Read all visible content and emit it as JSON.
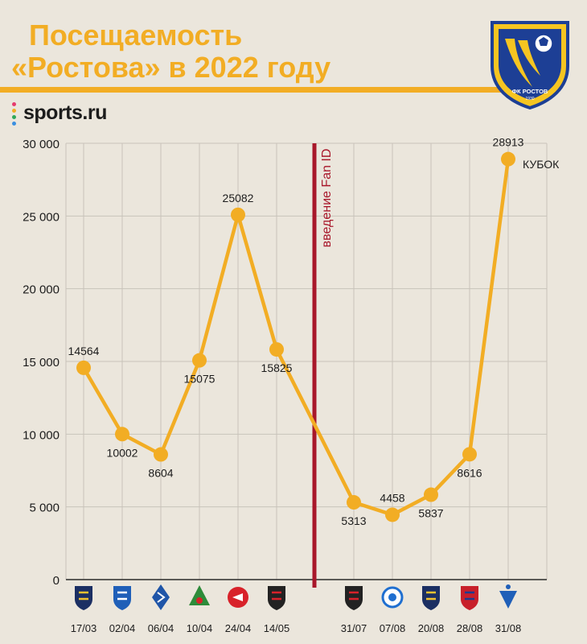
{
  "header": {
    "title_line1": "Посещаемость",
    "title_line2": "«Ростова» в 2022 году",
    "brand": "sports.ru",
    "emblem_text": "ФК РОСТОВ",
    "emblem_year": "1930"
  },
  "colors": {
    "accent": "#f2ad24",
    "line": "#f2ad24",
    "marker": "#f2ad24",
    "divider": "#a8172a",
    "grid": "#c8c3ba",
    "background": "#ebe6dc",
    "text": "#1c1c1c",
    "emblem_blue": "#1d3f95",
    "emblem_yellow": "#f6c521"
  },
  "chart_data": {
    "type": "line",
    "title": "Посещаемость «Ростова» в 2022 году",
    "xlabel": "",
    "ylabel": "",
    "ylim": [
      0,
      30000
    ],
    "yticks": [
      0,
      5000,
      10000,
      15000,
      20000,
      25000,
      30000
    ],
    "ytick_labels": [
      "0",
      "5 000",
      "10 000",
      "15 000",
      "20 000",
      "25 000",
      "30 000"
    ],
    "grid": true,
    "legend": "none",
    "categories": [
      "17/03",
      "02/04",
      "06/04",
      "10/04",
      "24/04",
      "14/05",
      "31/07",
      "07/08",
      "20/08",
      "28/08",
      "31/08"
    ],
    "values": [
      14564,
      10002,
      8604,
      15075,
      25082,
      15825,
      5313,
      4458,
      5837,
      8616,
      28913
    ],
    "value_labels": [
      "14564",
      "10002",
      "8604",
      "15075",
      "25082",
      "15825",
      "5313",
      "4458",
      "5837",
      "8616",
      "28913"
    ],
    "opponent_icons": [
      "sochi-logo-icon",
      "pari-nn-logo-icon",
      "krylia-sovetov-logo-icon",
      "lokomotiv-logo-icon",
      "spartak-logo-icon",
      "khimki-logo-icon",
      "khimki-logo-icon",
      "orenburg-logo-icon",
      "sochi-logo-icon",
      "cska-logo-icon",
      "dynamo-logo-icon"
    ],
    "annotations": [
      {
        "text": "введение Fan ID",
        "between_categories": [
          "14/05",
          "31/07"
        ]
      },
      {
        "text": "КУБОК",
        "category": "31/08"
      }
    ]
  }
}
